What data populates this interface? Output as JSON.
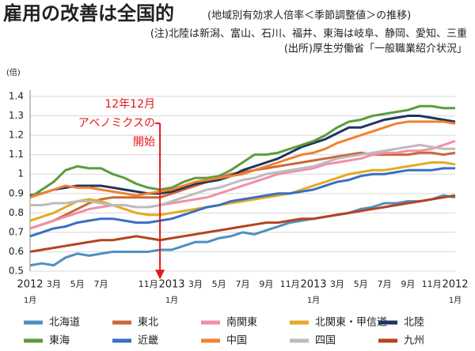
{
  "chart_data": {
    "type": "line",
    "title": "雇用の改善は全国的",
    "subtitle": "(地域別有効求人倍率＜季節調整値＞の推移)",
    "notes": [
      "(注)北陸は新潟、富山、石川、福井、東海は岐阜、静岡、愛知、三重",
      "(出所)厚生労働省「一般職業紹介状況」"
    ],
    "y_label": "(倍)",
    "annotation": [
      "12年12月",
      "アベノミクスの",
      "開始"
    ],
    "annotation_color": "#e8141a",
    "categories": [
      "1月",
      null,
      "3月",
      null,
      "5月",
      null,
      "7月",
      null,
      null,
      null,
      "11月",
      null,
      "1月",
      null,
      "3月",
      null,
      "5月",
      null,
      "7月",
      null,
      "9月",
      null,
      "11月",
      null,
      "1月",
      null,
      "3月",
      null,
      "5月",
      null,
      "7月",
      null,
      "9月",
      null,
      "11月",
      null,
      "1月"
    ],
    "years": [
      "2012",
      null,
      null,
      null,
      null,
      null,
      null,
      null,
      null,
      null,
      null,
      null,
      "2013",
      null,
      null,
      null,
      null,
      null,
      null,
      null,
      null,
      null,
      null,
      null,
      "2013",
      null,
      null,
      null,
      null,
      null,
      null,
      null,
      null,
      null,
      null,
      null,
      "2012"
    ],
    "ylim": [
      0.5,
      1.4
    ],
    "yticks": [
      0.5,
      0.6,
      0.7,
      0.8,
      0.9,
      1,
      1.1,
      1.2,
      1.3,
      1.4
    ],
    "grid": true,
    "legend": "bottom",
    "series": [
      {
        "name": "北海道",
        "color": "#4f8fc0",
        "values": [
          0.53,
          0.54,
          0.53,
          0.57,
          0.59,
          0.58,
          0.59,
          0.6,
          0.6,
          0.6,
          0.6,
          0.61,
          0.61,
          0.63,
          0.65,
          0.65,
          0.67,
          0.68,
          0.7,
          0.69,
          0.71,
          0.73,
          0.75,
          0.76,
          0.77,
          0.78,
          0.79,
          0.8,
          0.82,
          0.83,
          0.85,
          0.85,
          0.86,
          0.86,
          0.87,
          0.89,
          0.88
        ]
      },
      {
        "name": "東北",
        "color": "#c8693a",
        "values": [
          0.72,
          0.74,
          0.76,
          0.79,
          0.82,
          0.85,
          0.87,
          0.88,
          0.88,
          0.88,
          0.88,
          0.88,
          0.9,
          0.92,
          0.94,
          0.96,
          0.98,
          1.0,
          1.01,
          1.02,
          1.03,
          1.04,
          1.05,
          1.06,
          1.07,
          1.08,
          1.09,
          1.1,
          1.11,
          1.1,
          1.1,
          1.1,
          1.1,
          1.11,
          1.11,
          1.1,
          1.11
        ]
      },
      {
        "name": "南関東",
        "color": "#f28fa6",
        "values": [
          0.72,
          0.74,
          0.76,
          0.78,
          0.8,
          0.82,
          0.83,
          0.84,
          0.84,
          0.83,
          0.83,
          0.84,
          0.85,
          0.86,
          0.87,
          0.88,
          0.9,
          0.92,
          0.94,
          0.96,
          0.98,
          1.0,
          1.01,
          1.02,
          1.03,
          1.05,
          1.06,
          1.07,
          1.08,
          1.1,
          1.11,
          1.11,
          1.12,
          1.12,
          1.13,
          1.15,
          1.17
        ]
      },
      {
        "name": "北関東・甲信道",
        "color": "#e3aa22",
        "values": [
          0.76,
          0.78,
          0.8,
          0.83,
          0.86,
          0.87,
          0.86,
          0.84,
          0.82,
          0.8,
          0.79,
          0.79,
          0.8,
          0.81,
          0.82,
          0.83,
          0.84,
          0.85,
          0.86,
          0.87,
          0.88,
          0.89,
          0.9,
          0.92,
          0.94,
          0.96,
          0.98,
          1.0,
          1.01,
          1.02,
          1.02,
          1.03,
          1.04,
          1.05,
          1.06,
          1.06,
          1.05
        ]
      },
      {
        "name": "北陸",
        "color": "#1f3462",
        "values": [
          0.89,
          0.9,
          0.92,
          0.93,
          0.94,
          0.94,
          0.94,
          0.93,
          0.92,
          0.91,
          0.9,
          0.9,
          0.91,
          0.93,
          0.95,
          0.96,
          0.97,
          0.99,
          1.02,
          1.04,
          1.06,
          1.08,
          1.11,
          1.14,
          1.16,
          1.18,
          1.21,
          1.24,
          1.24,
          1.26,
          1.28,
          1.29,
          1.3,
          1.3,
          1.29,
          1.28,
          1.27
        ]
      },
      {
        "name": "東海",
        "color": "#5c9c3c",
        "values": [
          0.88,
          0.92,
          0.96,
          1.02,
          1.04,
          1.03,
          1.03,
          1.0,
          0.98,
          0.95,
          0.93,
          0.92,
          0.93,
          0.96,
          0.98,
          0.98,
          0.99,
          1.02,
          1.06,
          1.1,
          1.1,
          1.11,
          1.13,
          1.15,
          1.17,
          1.2,
          1.24,
          1.27,
          1.28,
          1.3,
          1.31,
          1.32,
          1.33,
          1.35,
          1.35,
          1.34,
          1.34
        ]
      },
      {
        "name": "近畿",
        "color": "#3a6fc2",
        "values": [
          0.68,
          0.7,
          0.72,
          0.73,
          0.75,
          0.76,
          0.77,
          0.77,
          0.76,
          0.75,
          0.75,
          0.76,
          0.77,
          0.79,
          0.81,
          0.83,
          0.84,
          0.86,
          0.87,
          0.88,
          0.89,
          0.9,
          0.9,
          0.91,
          0.92,
          0.94,
          0.96,
          0.97,
          0.99,
          1.0,
          1.0,
          1.01,
          1.02,
          1.02,
          1.02,
          1.03,
          1.03
        ]
      },
      {
        "name": "中国",
        "color": "#f2812e",
        "values": [
          0.88,
          0.9,
          0.92,
          0.94,
          0.93,
          0.93,
          0.92,
          0.91,
          0.9,
          0.89,
          0.9,
          0.91,
          0.92,
          0.94,
          0.96,
          0.97,
          0.98,
          0.99,
          1.0,
          1.02,
          1.04,
          1.06,
          1.08,
          1.1,
          1.11,
          1.13,
          1.16,
          1.18,
          1.2,
          1.22,
          1.24,
          1.26,
          1.27,
          1.27,
          1.27,
          1.27,
          1.26
        ]
      },
      {
        "name": "四国",
        "color": "#bcbcbc",
        "values": [
          0.84,
          0.84,
          0.85,
          0.85,
          0.86,
          0.86,
          0.85,
          0.84,
          0.84,
          0.83,
          0.83,
          0.84,
          0.86,
          0.88,
          0.9,
          0.92,
          0.93,
          0.95,
          0.97,
          0.98,
          1.0,
          1.01,
          1.02,
          1.03,
          1.04,
          1.06,
          1.08,
          1.09,
          1.1,
          1.11,
          1.12,
          1.13,
          1.14,
          1.15,
          1.14,
          1.13,
          1.13
        ]
      },
      {
        "name": "九州",
        "color": "#b3441f",
        "values": [
          0.6,
          0.61,
          0.62,
          0.63,
          0.64,
          0.65,
          0.66,
          0.66,
          0.67,
          0.68,
          0.67,
          0.66,
          0.67,
          0.68,
          0.69,
          0.7,
          0.71,
          0.72,
          0.73,
          0.74,
          0.75,
          0.75,
          0.76,
          0.77,
          0.77,
          0.78,
          0.79,
          0.8,
          0.81,
          0.82,
          0.83,
          0.84,
          0.85,
          0.86,
          0.87,
          0.88,
          0.89
        ]
      }
    ]
  }
}
